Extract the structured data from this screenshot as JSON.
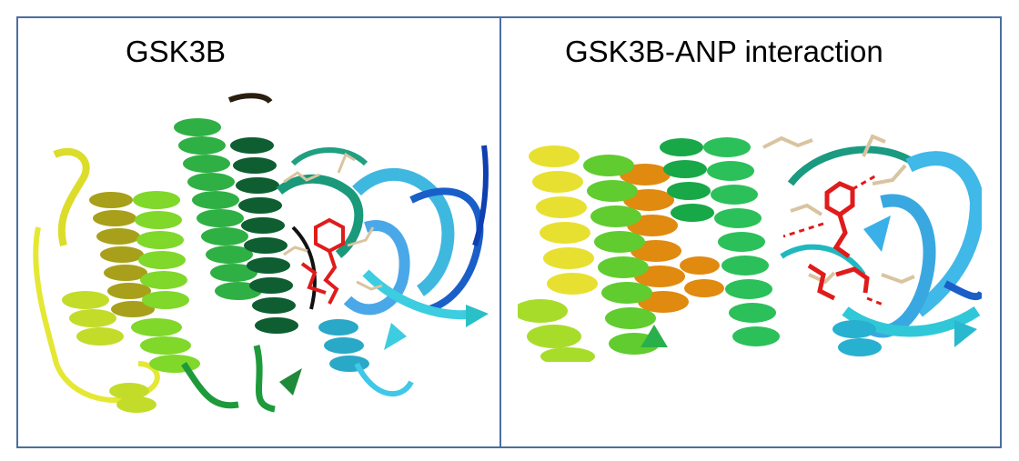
{
  "panels": [
    {
      "title": "GSK3B"
    },
    {
      "title": "GSK3B-ANP interaction"
    }
  ],
  "colors": {
    "frame": "#4a6fa0",
    "ligand": "#e01b1b",
    "side_chain": "#d9c4a0",
    "ribbon_gradient": [
      "#e8e83a",
      "#b8d82a",
      "#6fd23a",
      "#1e9a3a",
      "#0f6b3a",
      "#1aa06a",
      "#3fc4d8",
      "#4aa8e8",
      "#1a5fc8"
    ]
  }
}
